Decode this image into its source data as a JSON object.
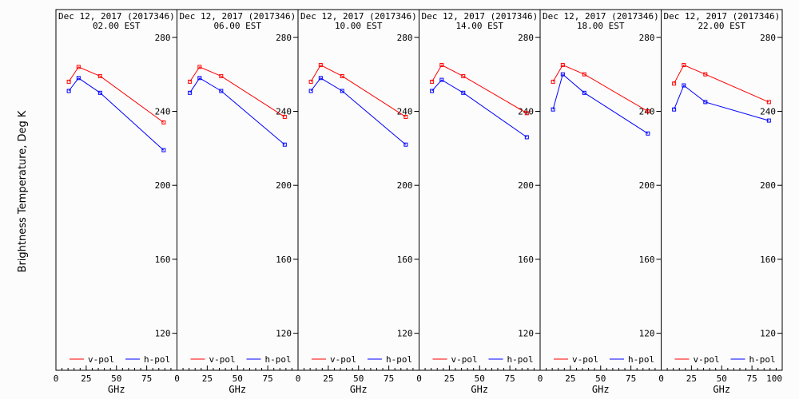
{
  "ylabel": "Brightness Temperature, Deg K",
  "xlabel": "GHz",
  "chart_data": [
    {
      "type": "line",
      "title": "Dec 12, 2017 (2017346)",
      "subtitle": "02.00 EST",
      "xlabel": "GHz",
      "ylabel": "Brightness Temperature, Deg K",
      "xlim": [
        0,
        100
      ],
      "ylim": [
        100,
        295
      ],
      "xticks": [
        "0",
        "25",
        "50",
        "75"
      ],
      "yticks": [
        "120",
        "160",
        "200",
        "240",
        "280"
      ],
      "grid": false,
      "legend": "bottom",
      "x": [
        10.65,
        18.7,
        36.5,
        89
      ],
      "series": [
        {
          "name": "v-pol",
          "color": "#ff0000",
          "values": [
            256,
            264,
            259,
            234
          ]
        },
        {
          "name": "h-pol",
          "color": "#0000ff",
          "values": [
            251,
            258,
            250,
            219
          ]
        }
      ]
    },
    {
      "type": "line",
      "title": "Dec 12, 2017 (2017346)",
      "subtitle": "06.00 EST",
      "xlabel": "GHz",
      "xlim": [
        0,
        100
      ],
      "ylim": [
        100,
        295
      ],
      "xticks": [
        "0",
        "25",
        "50",
        "75"
      ],
      "yticks": [
        "120",
        "160",
        "200",
        "240",
        "280"
      ],
      "grid": false,
      "legend": "bottom",
      "x": [
        10.65,
        18.7,
        36.5,
        89
      ],
      "series": [
        {
          "name": "v-pol",
          "color": "#ff0000",
          "values": [
            256,
            264,
            259,
            237
          ]
        },
        {
          "name": "h-pol",
          "color": "#0000ff",
          "values": [
            250,
            258,
            251,
            222
          ]
        }
      ]
    },
    {
      "type": "line",
      "title": "Dec 12, 2017 (2017346)",
      "subtitle": "10.00 EST",
      "xlabel": "GHz",
      "xlim": [
        0,
        100
      ],
      "ylim": [
        100,
        295
      ],
      "xticks": [
        "0",
        "25",
        "50",
        "75"
      ],
      "yticks": [
        "120",
        "160",
        "200",
        "240",
        "280"
      ],
      "grid": false,
      "legend": "bottom",
      "x": [
        10.65,
        18.7,
        36.5,
        89
      ],
      "series": [
        {
          "name": "v-pol",
          "color": "#ff0000",
          "values": [
            256,
            265,
            259,
            237
          ]
        },
        {
          "name": "h-pol",
          "color": "#0000ff",
          "values": [
            251,
            258,
            251,
            222
          ]
        }
      ]
    },
    {
      "type": "line",
      "title": "Dec 12, 2017 (2017346)",
      "subtitle": "14.00 EST",
      "xlabel": "GHz",
      "xlim": [
        0,
        100
      ],
      "ylim": [
        100,
        295
      ],
      "xticks": [
        "0",
        "25",
        "50",
        "75"
      ],
      "yticks": [
        "120",
        "160",
        "200",
        "240",
        "280"
      ],
      "grid": false,
      "legend": "bottom",
      "x": [
        10.65,
        18.7,
        36.5,
        89
      ],
      "series": [
        {
          "name": "v-pol",
          "color": "#ff0000",
          "values": [
            256,
            265,
            259,
            239
          ]
        },
        {
          "name": "h-pol",
          "color": "#0000ff",
          "values": [
            251,
            257,
            250,
            226
          ]
        }
      ]
    },
    {
      "type": "line",
      "title": "Dec 12, 2017 (2017346)",
      "subtitle": "18.00 EST",
      "xlabel": "GHz",
      "xlim": [
        0,
        100
      ],
      "ylim": [
        100,
        295
      ],
      "xticks": [
        "0",
        "25",
        "50",
        "75"
      ],
      "yticks": [
        "120",
        "160",
        "200",
        "240",
        "280"
      ],
      "grid": false,
      "legend": "bottom",
      "x": [
        10.65,
        18.7,
        36.5,
        89
      ],
      "series": [
        {
          "name": "v-pol",
          "color": "#ff0000",
          "values": [
            256,
            265,
            260,
            240
          ]
        },
        {
          "name": "h-pol",
          "color": "#0000ff",
          "values": [
            241,
            260,
            250,
            228
          ]
        }
      ]
    },
    {
      "type": "line",
      "title": "Dec 12, 2017 (2017346)",
      "subtitle": "22.00 EST",
      "xlabel": "GHz",
      "xlim": [
        0,
        100
      ],
      "ylim": [
        100,
        295
      ],
      "xticks": [
        "0",
        "25",
        "50",
        "75",
        "100"
      ],
      "yticks": [
        "120",
        "160",
        "200",
        "240",
        "280"
      ],
      "grid": false,
      "legend": "bottom",
      "x": [
        10.65,
        18.7,
        36.5,
        89
      ],
      "series": [
        {
          "name": "v-pol",
          "color": "#ff0000",
          "values": [
            255,
            265,
            260,
            245
          ]
        },
        {
          "name": "h-pol",
          "color": "#0000ff",
          "values": [
            241,
            254,
            245,
            235
          ]
        }
      ]
    }
  ]
}
